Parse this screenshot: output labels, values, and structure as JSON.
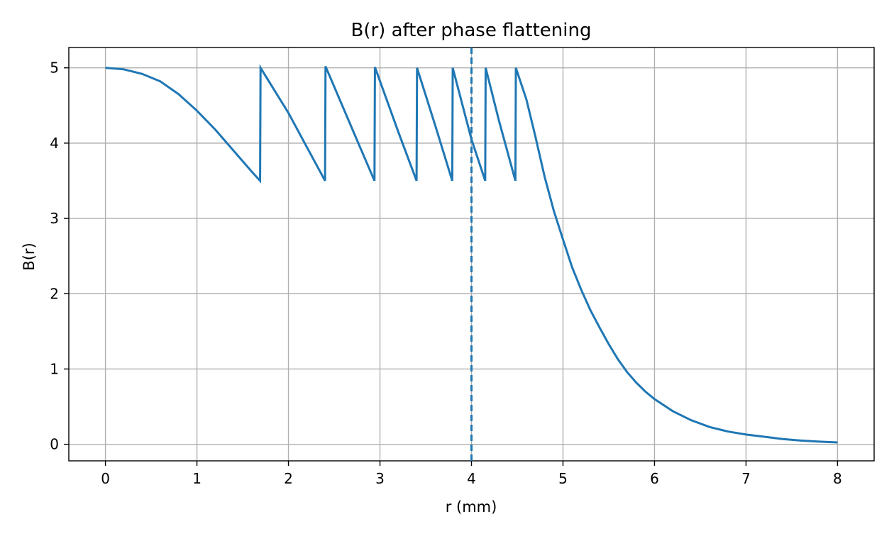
{
  "chart_data": {
    "type": "line",
    "title": "B(r) after phase flattening",
    "xlabel": "r (mm)",
    "ylabel": "B(r)",
    "xlim": [
      -0.4,
      8.4
    ],
    "ylim": [
      -0.22,
      5.27
    ],
    "xticks": [
      0,
      1,
      2,
      3,
      4,
      5,
      6,
      7,
      8
    ],
    "yticks": [
      0,
      1,
      2,
      3,
      4,
      5
    ],
    "grid": true,
    "line_color": "#1f77b4",
    "series": [
      {
        "values": [
          [
            0.0,
            5.0
          ],
          [
            0.2,
            4.98
          ],
          [
            0.4,
            4.92
          ],
          [
            0.6,
            4.82
          ],
          [
            0.8,
            4.65
          ],
          [
            1.0,
            4.43
          ],
          [
            1.2,
            4.18
          ],
          [
            1.4,
            3.9
          ],
          [
            1.6,
            3.62
          ],
          [
            1.69,
            3.5
          ],
          [
            1.695,
            5.0
          ],
          [
            2.0,
            4.4
          ],
          [
            2.2,
            3.95
          ],
          [
            2.4,
            3.5
          ],
          [
            2.405,
            5.02
          ],
          [
            2.7,
            4.18
          ],
          [
            2.94,
            3.5
          ],
          [
            2.945,
            5.01
          ],
          [
            3.2,
            4.15
          ],
          [
            3.4,
            3.5
          ],
          [
            3.405,
            5.0
          ],
          [
            3.6,
            4.25
          ],
          [
            3.79,
            3.5
          ],
          [
            3.795,
            5.0
          ],
          [
            4.0,
            4.05
          ],
          [
            4.15,
            3.5
          ],
          [
            4.155,
            5.0
          ],
          [
            4.3,
            4.3
          ],
          [
            4.48,
            3.5
          ],
          [
            4.485,
            5.0
          ],
          [
            4.6,
            4.58
          ],
          [
            4.7,
            4.08
          ],
          [
            4.8,
            3.55
          ],
          [
            4.9,
            3.1
          ],
          [
            5.0,
            2.72
          ],
          [
            5.1,
            2.35
          ],
          [
            5.2,
            2.05
          ],
          [
            5.3,
            1.78
          ],
          [
            5.4,
            1.55
          ],
          [
            5.5,
            1.33
          ],
          [
            5.6,
            1.13
          ],
          [
            5.7,
            0.96
          ],
          [
            5.8,
            0.82
          ],
          [
            5.9,
            0.7
          ],
          [
            6.0,
            0.6
          ],
          [
            6.2,
            0.44
          ],
          [
            6.4,
            0.32
          ],
          [
            6.6,
            0.23
          ],
          [
            6.8,
            0.17
          ],
          [
            7.0,
            0.13
          ],
          [
            7.2,
            0.1
          ],
          [
            7.4,
            0.07
          ],
          [
            7.6,
            0.05
          ],
          [
            7.8,
            0.035
          ],
          [
            8.0,
            0.025
          ]
        ]
      }
    ],
    "vline": {
      "x": 4.0,
      "style": "dashed"
    }
  }
}
